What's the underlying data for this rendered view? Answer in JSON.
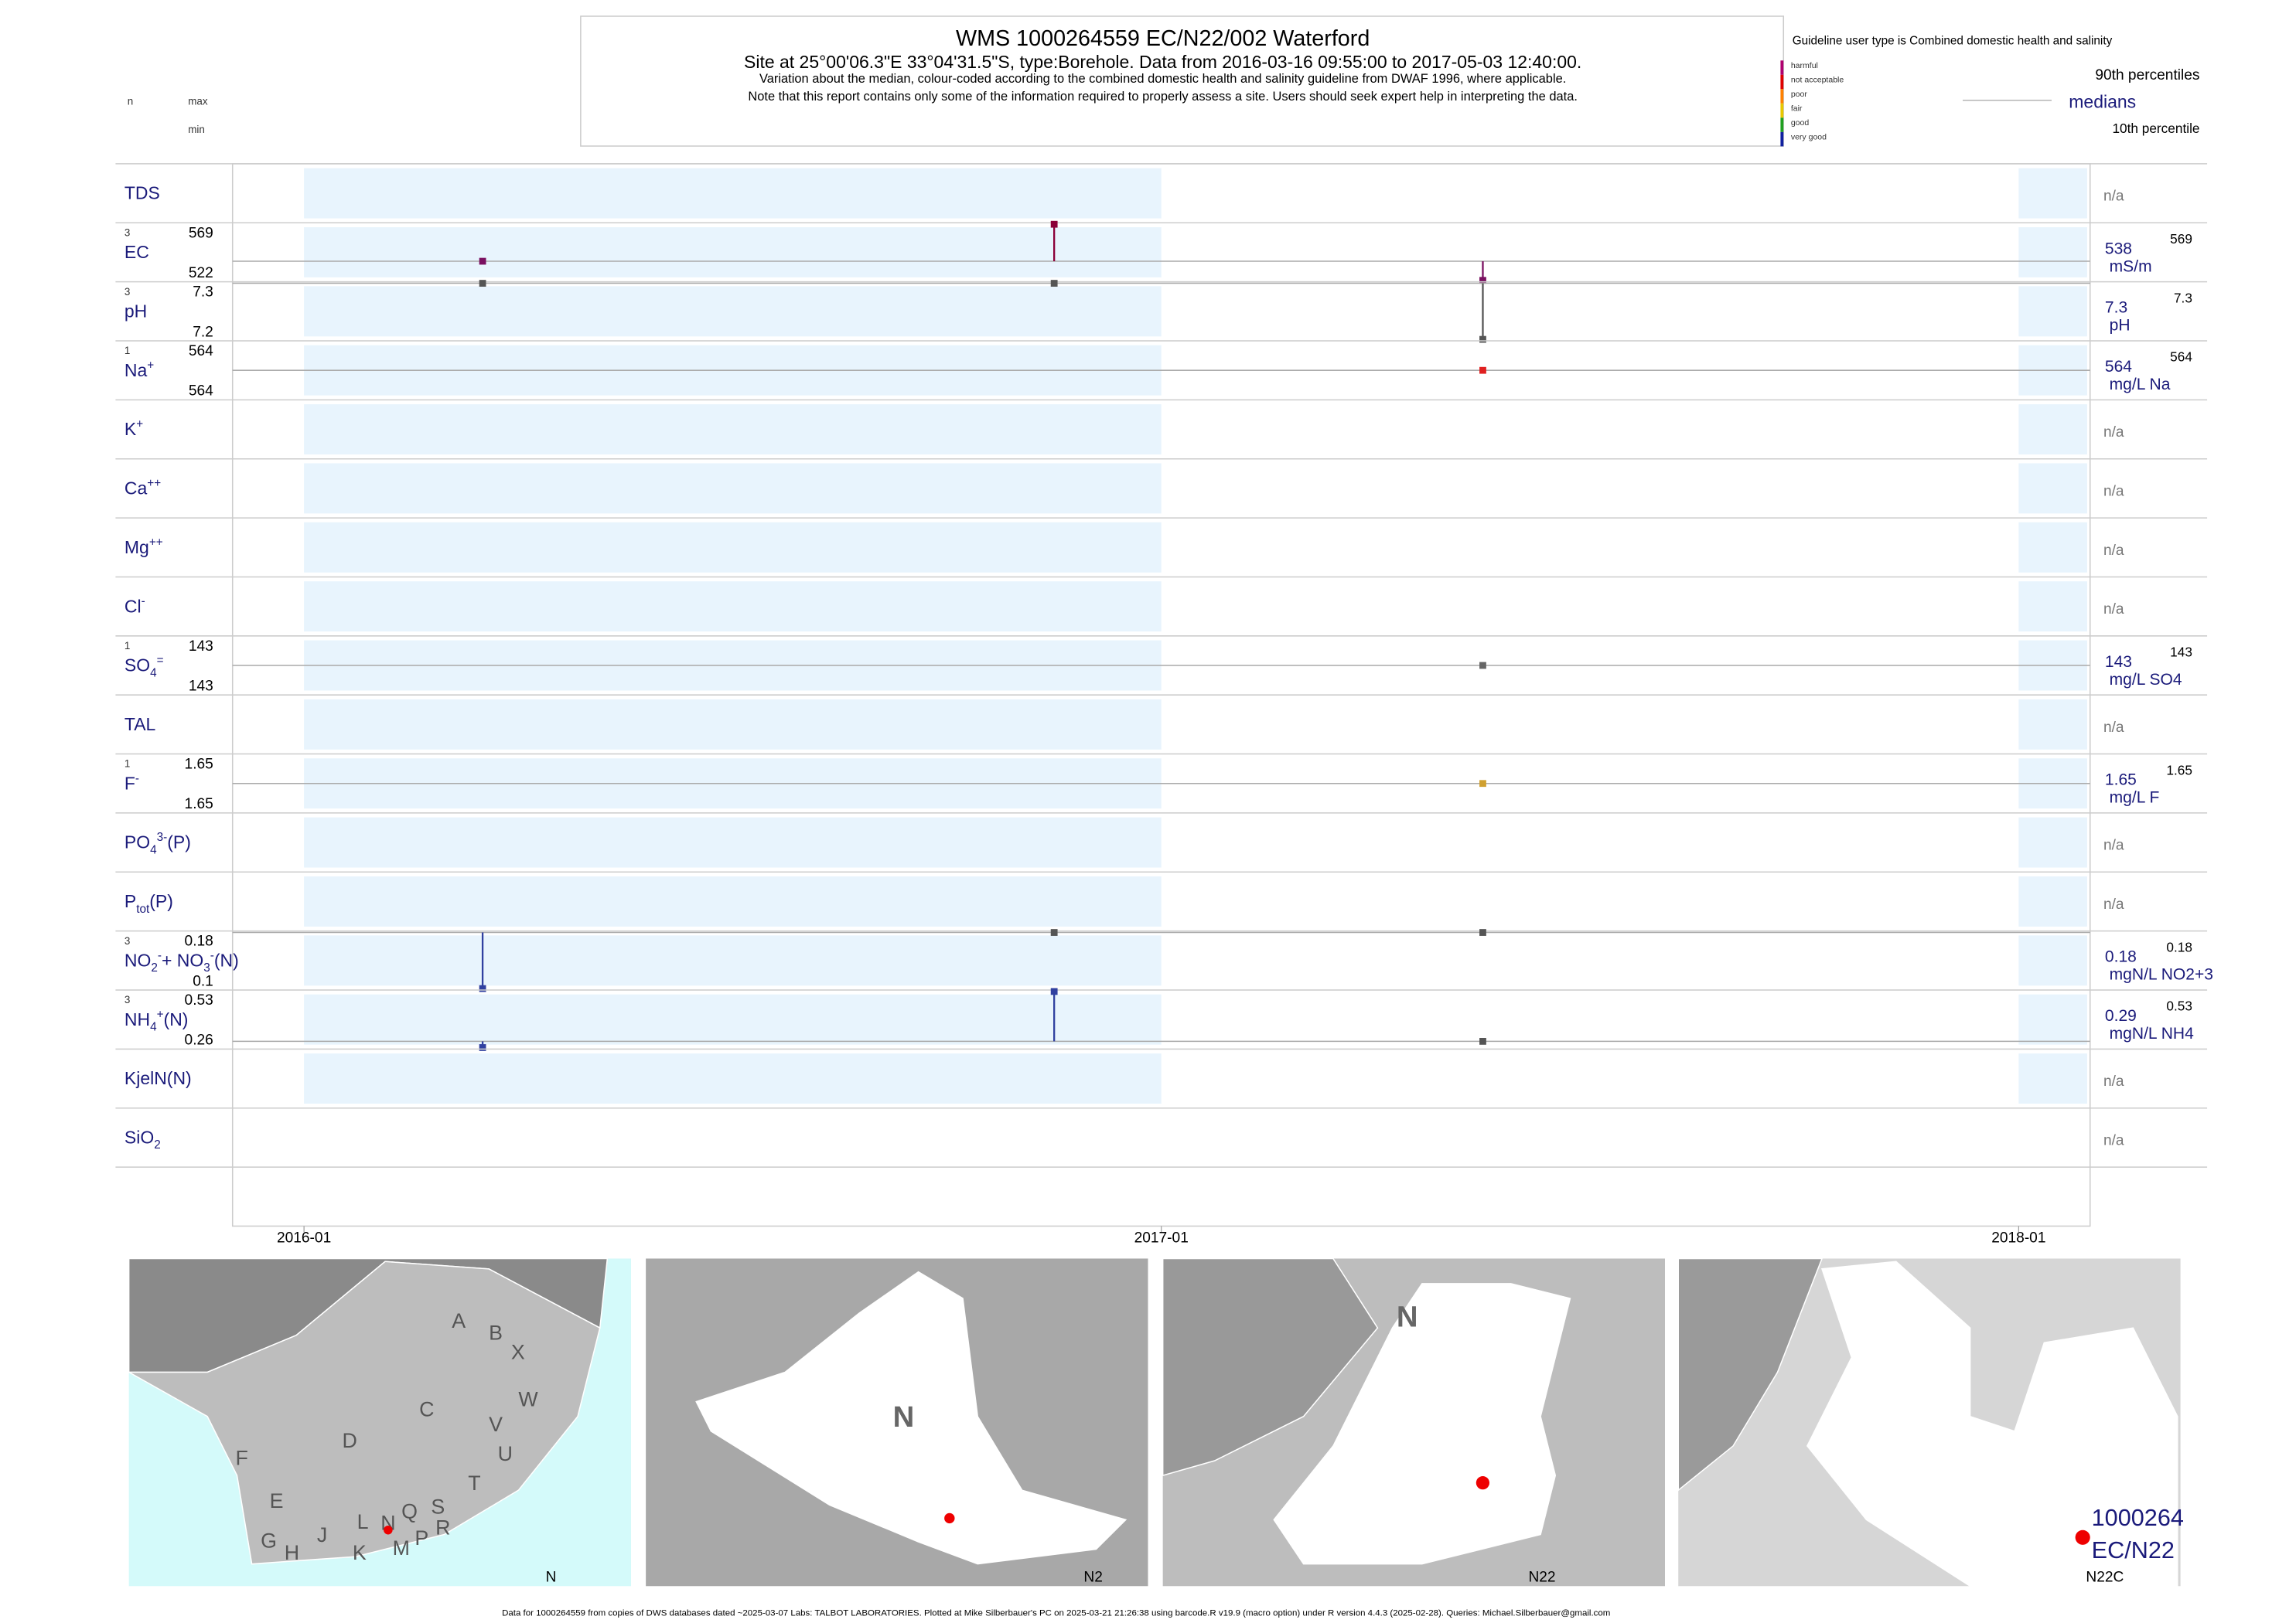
{
  "chart_data": {
    "type": "strip",
    "header": {
      "title": "WMS 1000264559 EC/N22/002 Waterford",
      "subtitle": "Site at 25°00'06.3\"E 33°04'31.5\"S, type:Borehole.  Data from 2016-03-16 09:55:00 to 2017-05-03 12:40:00.",
      "notes": [
        "Variation about the median,  colour-coded according to the combined domestic health and salinity guideline from DWAF 1996, where applicable.",
        "Note that this report contains only some of the information required to properly assess a site. Users should seek expert help in interpreting the data."
      ]
    },
    "left_key": {
      "n": "n",
      "max": "max",
      "min": "min"
    },
    "legend": {
      "title": "Guideline user type is Combined domestic health and salinity",
      "categories": [
        {
          "name": "harmful",
          "color": "#b0006f"
        },
        {
          "name": "not acceptable",
          "color": "#e00000"
        },
        {
          "name": "poor",
          "color": "#ff8000"
        },
        {
          "name": "fair",
          "color": "#e8c800"
        },
        {
          "name": "good",
          "color": "#20a020"
        },
        {
          "name": "very good",
          "color": "#1020a0"
        }
      ],
      "upper": "90th percentiles",
      "middle": "medians",
      "lower": "10th percentile"
    },
    "xlim": [
      "2015-12",
      "2018-02"
    ],
    "xticks": [
      "2016-01",
      "2017-01",
      "2018-01"
    ],
    "rows": [
      {
        "label": [
          {
            "text": "TDS"
          }
        ],
        "na": "n/a"
      },
      {
        "label": [
          {
            "text": "EC"
          }
        ],
        "n": 3,
        "max": 569,
        "min": 522,
        "median": 538,
        "unit": "mS/m",
        "x": [
          "2016-03",
          "2016-11",
          "2017-05"
        ],
        "values": [
          538,
          569,
          522
        ],
        "colors": [
          "#7a1060",
          "#8b0038",
          "#7a1060"
        ]
      },
      {
        "label": [
          {
            "text": "pH"
          }
        ],
        "n": 3,
        "max": 7.3,
        "min": 7.2,
        "median": 7.3,
        "unit": "pH",
        "x": [
          "2016-03",
          "2016-11",
          "2017-05"
        ],
        "values": [
          7.3,
          7.3,
          7.2
        ],
        "colors": [
          "#555555",
          "#555555",
          "#555555"
        ]
      },
      {
        "label": [
          {
            "text": "Na"
          },
          {
            "sup": "+"
          }
        ],
        "n": 1,
        "max": 564,
        "min": 564,
        "median": 564,
        "unit": "mg/L Na",
        "x": [
          "2017-05"
        ],
        "values": [
          564
        ],
        "colors": [
          "#e02020"
        ]
      },
      {
        "label": [
          {
            "text": "K"
          },
          {
            "sup": "+"
          }
        ],
        "na": "n/a"
      },
      {
        "label": [
          {
            "text": "Ca"
          },
          {
            "sup": "++"
          }
        ],
        "na": "n/a"
      },
      {
        "label": [
          {
            "text": "Mg"
          },
          {
            "sup": "++"
          }
        ],
        "na": "n/a"
      },
      {
        "label": [
          {
            "text": "Cl"
          },
          {
            "sup": "-"
          }
        ],
        "na": "n/a"
      },
      {
        "label": [
          {
            "text": "SO"
          },
          {
            "sub": "4"
          },
          {
            "sup": "="
          }
        ],
        "n": 1,
        "max": 143,
        "min": 143,
        "median": 143,
        "unit": "mg/L SO4",
        "x": [
          "2017-05"
        ],
        "values": [
          143
        ],
        "colors": [
          "#666666"
        ]
      },
      {
        "label": [
          {
            "text": "TAL"
          }
        ],
        "na": "n/a"
      },
      {
        "label": [
          {
            "text": "F"
          },
          {
            "sup": "-"
          }
        ],
        "n": 1,
        "max": 1.65,
        "min": 1.65,
        "median": 1.65,
        "unit": "mg/L F",
        "x": [
          "2017-05"
        ],
        "values": [
          1.65
        ],
        "colors": [
          "#d0a030"
        ]
      },
      {
        "label": [
          {
            "text": "PO"
          },
          {
            "sub": "4"
          },
          {
            "sup": "3-"
          },
          {
            "text": "(P)"
          }
        ],
        "na": "n/a"
      },
      {
        "label": [
          {
            "text": "P"
          },
          {
            "sub": "tot"
          },
          {
            "text": "(P)"
          }
        ],
        "na": "n/a"
      },
      {
        "label": [
          {
            "text": "NO"
          },
          {
            "sub": "2"
          },
          {
            "sup": "-"
          },
          {
            "text": "+ NO"
          },
          {
            "sub": "3"
          },
          {
            "sup": "-"
          },
          {
            "text": "(N)"
          }
        ],
        "n": 3,
        "max": 0.18,
        "min": 0.1,
        "median": 0.18,
        "unit": "mgN/L NO2+3",
        "x": [
          "2016-03",
          "2016-11",
          "2017-05"
        ],
        "values": [
          0.1,
          0.18,
          0.18
        ],
        "colors": [
          "#3040a0",
          "#555555",
          "#555555"
        ]
      },
      {
        "label": [
          {
            "text": "NH"
          },
          {
            "sub": "4"
          },
          {
            "sup": "+"
          },
          {
            "text": "(N)"
          }
        ],
        "n": 3,
        "max": 0.53,
        "min": 0.26,
        "median": 0.29,
        "unit": "mgN/L NH4",
        "x": [
          "2016-03",
          "2016-11",
          "2017-05"
        ],
        "values": [
          0.26,
          0.53,
          0.29
        ],
        "colors": [
          "#3040a0",
          "#3040a0",
          "#555555"
        ]
      },
      {
        "label": [
          {
            "text": "KjelN(N)"
          }
        ],
        "na": "n/a"
      },
      {
        "label": [
          {
            "text": "SiO"
          },
          {
            "sub": "2"
          }
        ],
        "na": "n/a"
      }
    ],
    "maps": [
      {
        "labels": [
          "A",
          "B",
          "X",
          "C",
          "W",
          "D",
          "V",
          "U",
          "F",
          "T",
          "E",
          "L",
          "N",
          "Q",
          "S",
          "R",
          "G",
          "H",
          "J",
          "K",
          "M",
          "P"
        ],
        "caption": "N"
      },
      {
        "labels": [
          "N"
        ],
        "caption": "N2"
      },
      {
        "labels": [
          "N"
        ],
        "caption": "N22"
      },
      {
        "labels": [
          "1000264",
          "EC/N22"
        ],
        "caption": "N22C"
      }
    ],
    "footer": "Data for 1000264559 from copies of DWS databases dated ~2025-03-07 Labs: TALBOT LABORATORIES. Plotted at Mike Silberbauer's PC on 2025-03-21 21:26:38 using barcode.R v19.9 (macro option) under R version 4.4.3 (2025-02-28). Queries: Michael.Silberbauer@gmail.com"
  }
}
